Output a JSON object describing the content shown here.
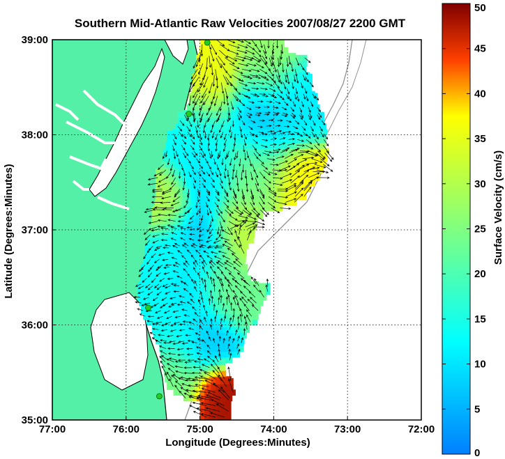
{
  "chart_data": {
    "type": "heatmap",
    "title": "Southern Mid-Atlantic Raw Velocities 2007/08/27 2200 GMT",
    "xlabel": "Longitude (Degrees:Minutes)",
    "ylabel": "Latitude (Degrees:Minutes)",
    "colorbar_label": "Surface Velocity (cm/s)",
    "xlim": [
      -77,
      -72
    ],
    "ylim": [
      35,
      39
    ],
    "clim": [
      0,
      50
    ],
    "grid": true,
    "x_ticks": [
      {
        "value": -77,
        "label": "77:00"
      },
      {
        "value": -76,
        "label": "76:00"
      },
      {
        "value": -75,
        "label": "75:00"
      },
      {
        "value": -74,
        "label": "74:00"
      },
      {
        "value": -73,
        "label": "73:00"
      },
      {
        "value": -72,
        "label": "72:00"
      }
    ],
    "y_ticks": [
      {
        "value": 35,
        "label": "35:00"
      },
      {
        "value": 36,
        "label": "36:00"
      },
      {
        "value": 37,
        "label": "37:00"
      },
      {
        "value": 38,
        "label": "38:00"
      },
      {
        "value": 39,
        "label": "39:00"
      }
    ],
    "colorbar_ticks": [
      0,
      5,
      10,
      15,
      20,
      25,
      30,
      35,
      40,
      45,
      50
    ],
    "colors": {
      "title": "#0000FF",
      "land": "#55F0A8",
      "coastline": "#000000",
      "bathymetry": "#909090",
      "station_marker": "#22CC22",
      "arrow": "#000000"
    },
    "stations": [
      {
        "lon": -74.9,
        "lat": 38.97
      },
      {
        "lon": -75.15,
        "lat": 38.22
      },
      {
        "lon": -75.7,
        "lat": 36.18
      },
      {
        "lon": -75.55,
        "lat": 35.25
      }
    ],
    "coverage_rows": [
      {
        "lat": 38.9,
        "lon_min": -75.0,
        "lon_max": -73.9
      },
      {
        "lat": 38.7,
        "lon_min": -75.05,
        "lon_max": -73.6
      },
      {
        "lat": 38.5,
        "lon_min": -75.1,
        "lon_max": -73.5
      },
      {
        "lat": 38.3,
        "lon_min": -75.15,
        "lon_max": -73.45
      },
      {
        "lat": 38.1,
        "lon_min": -75.3,
        "lon_max": -73.35
      },
      {
        "lat": 37.9,
        "lon_min": -75.45,
        "lon_max": -73.3
      },
      {
        "lat": 37.7,
        "lon_min": -75.5,
        "lon_max": -73.3
      },
      {
        "lat": 37.5,
        "lon_min": -75.6,
        "lon_max": -73.4
      },
      {
        "lat": 37.3,
        "lon_min": -75.6,
        "lon_max": -73.6
      },
      {
        "lat": 37.1,
        "lon_min": -75.65,
        "lon_max": -74.2
      },
      {
        "lat": 36.9,
        "lon_min": -75.7,
        "lon_max": -74.3
      },
      {
        "lat": 36.7,
        "lon_min": -75.75,
        "lon_max": -74.4
      },
      {
        "lat": 36.5,
        "lon_min": -75.8,
        "lon_max": -74.4
      },
      {
        "lat": 36.3,
        "lon_min": -75.85,
        "lon_max": -74.1
      },
      {
        "lat": 36.1,
        "lon_min": -75.8,
        "lon_max": -74.2
      },
      {
        "lat": 35.9,
        "lon_min": -75.65,
        "lon_max": -74.35
      },
      {
        "lat": 35.7,
        "lon_min": -75.55,
        "lon_max": -74.45
      },
      {
        "lat": 35.5,
        "lon_min": -75.5,
        "lon_max": -74.7
      },
      {
        "lat": 35.3,
        "lon_min": -75.45,
        "lon_max": -74.55
      },
      {
        "lat": 35.1,
        "lon_min": -75.0,
        "lon_max": -74.6
      }
    ],
    "velocity_features": [
      {
        "lon": -74.85,
        "lat": 38.6,
        "speed": 36,
        "radius": 0.35
      },
      {
        "lon": -74.1,
        "lat": 38.7,
        "speed": 27,
        "radius": 0.3
      },
      {
        "lon": -74.2,
        "lat": 38.2,
        "speed": 6,
        "radius": 0.35
      },
      {
        "lon": -73.75,
        "lat": 38.3,
        "speed": 11,
        "radius": 0.3
      },
      {
        "lon": -75.0,
        "lat": 37.95,
        "speed": 13,
        "radius": 0.35
      },
      {
        "lon": -74.9,
        "lat": 37.55,
        "speed": 9,
        "radius": 0.3
      },
      {
        "lon": -74.3,
        "lat": 37.55,
        "speed": 24,
        "radius": 0.4
      },
      {
        "lon": -73.65,
        "lat": 37.45,
        "speed": 38,
        "radius": 0.3
      },
      {
        "lon": -75.45,
        "lat": 37.3,
        "speed": 30,
        "radius": 0.25
      },
      {
        "lon": -74.45,
        "lat": 37.0,
        "speed": 32,
        "radius": 0.28
      },
      {
        "lon": -75.0,
        "lat": 36.9,
        "speed": 7,
        "radius": 0.3
      },
      {
        "lon": -75.3,
        "lat": 36.7,
        "speed": 13,
        "radius": 0.3
      },
      {
        "lon": -74.7,
        "lat": 36.45,
        "speed": 23,
        "radius": 0.3
      },
      {
        "lon": -75.1,
        "lat": 36.35,
        "speed": 9,
        "radius": 0.25
      },
      {
        "lon": -75.3,
        "lat": 35.95,
        "speed": 13,
        "radius": 0.35
      },
      {
        "lon": -74.95,
        "lat": 35.85,
        "speed": 7,
        "radius": 0.25
      },
      {
        "lon": -75.35,
        "lat": 35.45,
        "speed": 25,
        "radius": 0.3
      },
      {
        "lon": -74.8,
        "lat": 35.25,
        "speed": 48,
        "radius": 0.22
      }
    ]
  }
}
